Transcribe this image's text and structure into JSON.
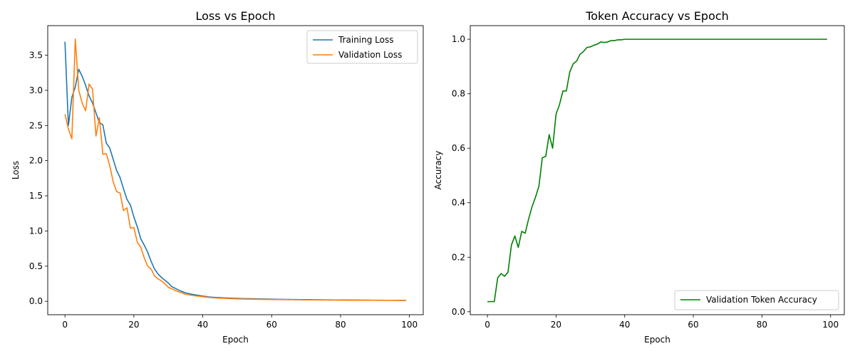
{
  "chart_data": [
    {
      "type": "line",
      "title": "Loss vs Epoch",
      "xlabel": "Epoch",
      "ylabel": "Loss",
      "xlim": [
        -5,
        104
      ],
      "ylim": [
        -0.19,
        3.92
      ],
      "xticks": [
        0,
        20,
        40,
        60,
        80,
        100
      ],
      "yticks": [
        0.0,
        0.5,
        1.0,
        1.5,
        2.0,
        2.5,
        3.0,
        3.5
      ],
      "ytick_format": 1,
      "grid": false,
      "legend": "top-right",
      "series": [
        {
          "name": "Training Loss",
          "color": "#1f77b4",
          "x": [
            0,
            1,
            2,
            3,
            4,
            5,
            6,
            7,
            8,
            9,
            10,
            11,
            12,
            13,
            14,
            15,
            16,
            17,
            18,
            19,
            20,
            21,
            22,
            23,
            24,
            25,
            26,
            27,
            28,
            29,
            30,
            31,
            32,
            33,
            34,
            35,
            36,
            37,
            38,
            39,
            40,
            41,
            42,
            43,
            44,
            45,
            46,
            47,
            48,
            49,
            50,
            51,
            52,
            53,
            54,
            55,
            56,
            57,
            58,
            59,
            60,
            61,
            62,
            63,
            64,
            65,
            66,
            67,
            68,
            69,
            70,
            71,
            72,
            73,
            74,
            75,
            76,
            77,
            78,
            79,
            80,
            81,
            82,
            83,
            84,
            85,
            86,
            87,
            88,
            89,
            90,
            91,
            92,
            93,
            94,
            95,
            96,
            97,
            98,
            99
          ],
          "y": [
            3.69,
            2.5,
            2.9,
            3.05,
            3.3,
            3.2,
            3.07,
            2.92,
            2.82,
            2.68,
            2.54,
            2.51,
            2.25,
            2.18,
            2.02,
            1.86,
            1.76,
            1.6,
            1.45,
            1.37,
            1.2,
            1.06,
            0.89,
            0.8,
            0.7,
            0.57,
            0.46,
            0.39,
            0.34,
            0.3,
            0.26,
            0.21,
            0.185,
            0.16,
            0.14,
            0.12,
            0.11,
            0.1,
            0.09,
            0.083,
            0.075,
            0.068,
            0.062,
            0.058,
            0.055,
            0.052,
            0.05,
            0.048,
            0.046,
            0.044,
            0.042,
            0.04,
            0.039,
            0.038,
            0.037,
            0.036,
            0.035,
            0.034,
            0.033,
            0.032,
            0.031,
            0.03,
            0.029,
            0.028,
            0.027,
            0.027,
            0.026,
            0.026,
            0.025,
            0.025,
            0.024,
            0.024,
            0.023,
            0.023,
            0.022,
            0.022,
            0.021,
            0.021,
            0.02,
            0.02,
            0.019,
            0.019,
            0.019,
            0.018,
            0.018,
            0.018,
            0.017,
            0.017,
            0.017,
            0.016,
            0.016,
            0.016,
            0.016,
            0.015,
            0.015,
            0.015,
            0.015,
            0.014,
            0.014,
            0.014
          ]
        },
        {
          "name": "Validation Loss",
          "color": "#ff7f0e",
          "x": [
            0,
            1,
            2,
            3,
            4,
            5,
            6,
            7,
            8,
            9,
            10,
            11,
            12,
            13,
            14,
            15,
            16,
            17,
            18,
            19,
            20,
            21,
            22,
            23,
            24,
            25,
            26,
            27,
            28,
            29,
            30,
            31,
            32,
            33,
            34,
            35,
            36,
            37,
            38,
            39,
            40,
            41,
            42,
            43,
            44,
            45,
            46,
            47,
            48,
            49,
            50,
            51,
            52,
            53,
            54,
            55,
            56,
            57,
            58,
            59,
            60,
            61,
            62,
            63,
            64,
            65,
            66,
            67,
            68,
            69,
            70,
            71,
            72,
            73,
            74,
            75,
            76,
            77,
            78,
            79,
            80,
            81,
            82,
            83,
            84,
            85,
            86,
            87,
            88,
            89,
            90,
            91,
            92,
            93,
            94,
            95,
            96,
            97,
            98,
            99
          ],
          "y": [
            2.66,
            2.45,
            2.31,
            3.73,
            3.0,
            2.82,
            2.71,
            3.09,
            3.02,
            2.35,
            2.61,
            2.09,
            2.1,
            1.93,
            1.7,
            1.56,
            1.54,
            1.29,
            1.33,
            1.04,
            1.05,
            0.84,
            0.77,
            0.62,
            0.5,
            0.46,
            0.36,
            0.32,
            0.29,
            0.25,
            0.2,
            0.18,
            0.155,
            0.135,
            0.12,
            0.1,
            0.092,
            0.085,
            0.078,
            0.072,
            0.066,
            0.06,
            0.055,
            0.051,
            0.048,
            0.045,
            0.043,
            0.041,
            0.039,
            0.037,
            0.035,
            0.034,
            0.033,
            0.032,
            0.031,
            0.03,
            0.029,
            0.028,
            0.027,
            0.027,
            0.026,
            0.025,
            0.025,
            0.024,
            0.024,
            0.023,
            0.023,
            0.022,
            0.022,
            0.021,
            0.021,
            0.02,
            0.02,
            0.02,
            0.019,
            0.019,
            0.019,
            0.018,
            0.018,
            0.018,
            0.017,
            0.017,
            0.017,
            0.016,
            0.016,
            0.016,
            0.016,
            0.015,
            0.015,
            0.015,
            0.015,
            0.014,
            0.014,
            0.014,
            0.014,
            0.014,
            0.013,
            0.013,
            0.013,
            0.013
          ]
        }
      ]
    },
    {
      "type": "line",
      "title": "Token Accuracy vs Epoch",
      "xlabel": "Epoch",
      "ylabel": "Accuracy",
      "xlim": [
        -5,
        104
      ],
      "ylim": [
        -0.011,
        1.05
      ],
      "xticks": [
        0,
        20,
        40,
        60,
        80,
        100
      ],
      "yticks": [
        0.0,
        0.2,
        0.4,
        0.6,
        0.8,
        1.0
      ],
      "ytick_format": 1,
      "grid": false,
      "legend": "bottom-right",
      "series": [
        {
          "name": "Validation Token Accuracy",
          "color": "#008000",
          "x": [
            0,
            1,
            2,
            3,
            4,
            5,
            6,
            7,
            8,
            9,
            10,
            11,
            12,
            13,
            14,
            15,
            16,
            17,
            18,
            19,
            20,
            21,
            22,
            23,
            24,
            25,
            26,
            27,
            28,
            29,
            30,
            31,
            32,
            33,
            34,
            35,
            36,
            37,
            38,
            39,
            40,
            41,
            42,
            43,
            44,
            45,
            46,
            47,
            48,
            49,
            50,
            51,
            52,
            53,
            54,
            55,
            56,
            57,
            58,
            59,
            60,
            61,
            62,
            63,
            64,
            65,
            66,
            67,
            68,
            69,
            70,
            71,
            72,
            73,
            74,
            75,
            76,
            77,
            78,
            79,
            80,
            81,
            82,
            83,
            84,
            85,
            86,
            87,
            88,
            89,
            90,
            91,
            92,
            93,
            94,
            95,
            96,
            97,
            98,
            99
          ],
          "y": [
            0.037,
            0.037,
            0.037,
            0.125,
            0.14,
            0.13,
            0.145,
            0.245,
            0.278,
            0.236,
            0.295,
            0.288,
            0.34,
            0.385,
            0.42,
            0.46,
            0.565,
            0.57,
            0.65,
            0.6,
            0.725,
            0.76,
            0.81,
            0.81,
            0.88,
            0.91,
            0.92,
            0.945,
            0.955,
            0.97,
            0.972,
            0.978,
            0.982,
            0.99,
            0.988,
            0.99,
            0.995,
            0.995,
            0.998,
            0.998,
            1.0,
            1.0,
            1.0,
            1.0,
            1.0,
            1.0,
            1.0,
            1.0,
            1.0,
            1.0,
            1.0,
            1.0,
            1.0,
            1.0,
            1.0,
            1.0,
            1.0,
            1.0,
            1.0,
            1.0,
            1.0,
            1.0,
            1.0,
            1.0,
            1.0,
            1.0,
            1.0,
            1.0,
            1.0,
            1.0,
            1.0,
            1.0,
            1.0,
            1.0,
            1.0,
            1.0,
            1.0,
            1.0,
            1.0,
            1.0,
            1.0,
            1.0,
            1.0,
            1.0,
            1.0,
            1.0,
            1.0,
            1.0,
            1.0,
            1.0,
            1.0,
            1.0,
            1.0,
            1.0,
            1.0,
            1.0,
            1.0,
            1.0,
            1.0,
            1.0
          ]
        }
      ]
    }
  ]
}
